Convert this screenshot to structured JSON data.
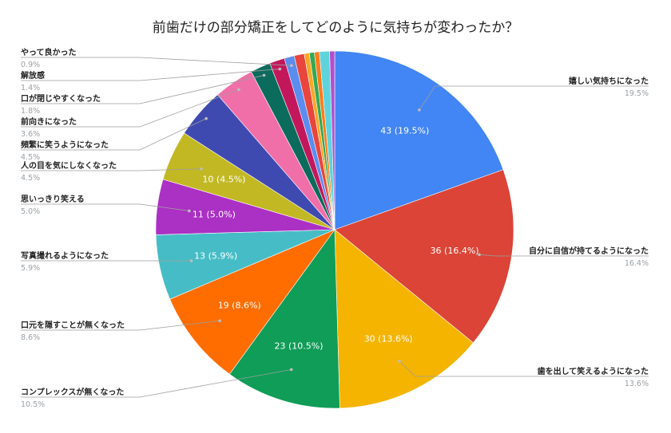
{
  "chart_data": {
    "type": "pie",
    "title": "前歯だけの部分矯正をしてどのように気持ちが変わったか？",
    "slices": [
      {
        "label": "嬉しい気持ちになった",
        "value": 43,
        "percent": "19.5%",
        "color": "#4285f4",
        "slice_label": "43 (19.5%)"
      },
      {
        "label": "自分に自信が持てるようになった",
        "value": 36,
        "percent": "16.4%",
        "color": "#db4437",
        "slice_label": "36 (16.4%)"
      },
      {
        "label": "歯を出して笑えるようになった",
        "value": 30,
        "percent": "13.6%",
        "color": "#f4b400",
        "slice_label": "30 (13.6%)"
      },
      {
        "label": "コンプレックスが無くなった",
        "value": 23,
        "percent": "10.5%",
        "color": "#0f9d58",
        "slice_label": "23 (10.5%)"
      },
      {
        "label": "口元を隠すことが無くなった",
        "value": 19,
        "percent": "8.6%",
        "color": "#ff6d01",
        "slice_label": "19 (8.6%)"
      },
      {
        "label": "写真撮れるようになった",
        "value": 13,
        "percent": "5.9%",
        "color": "#46bdc6",
        "slice_label": "13 (5.9%)"
      },
      {
        "label": "思いっきり笑える",
        "value": 11,
        "percent": "5.0%",
        "color": "#ab30c4",
        "slice_label": "11 (5.0%)"
      },
      {
        "label": "人の目を気にしなくなった",
        "value": 10,
        "percent": "4.5%",
        "color": "#c2b824",
        "slice_label": "10 (4.5%)"
      },
      {
        "label": "頻繁に笑うようになった",
        "value": 10,
        "percent": "4.5%",
        "color": "#3f4ab0",
        "slice_label": ""
      },
      {
        "label": "前向きになった",
        "value": 8,
        "percent": "3.6%",
        "color": "#f06fa8",
        "slice_label": ""
      },
      {
        "label": "口が閉じやすくなった",
        "value": 4,
        "percent": "1.8%",
        "color": "#0b6b5c",
        "slice_label": ""
      },
      {
        "label": "解放感",
        "value": 3,
        "percent": "1.4%",
        "color": "#c2185b",
        "slice_label": ""
      },
      {
        "label": "やって良かった",
        "value": 2,
        "percent": "0.9%",
        "color": "#5b8def",
        "slice_label": ""
      },
      {
        "label": "",
        "value": 2,
        "percent": "",
        "color": "#e8453c",
        "slice_label": ""
      },
      {
        "label": "",
        "value": 1,
        "percent": "",
        "color": "#f9a825",
        "slice_label": ""
      },
      {
        "label": "",
        "value": 1,
        "percent": "",
        "color": "#34a853",
        "slice_label": ""
      },
      {
        "label": "",
        "value": 1,
        "percent": "",
        "color": "#ff7b1a",
        "slice_label": ""
      },
      {
        "label": "",
        "value": 2,
        "percent": "",
        "color": "#5fd3dc",
        "slice_label": ""
      },
      {
        "label": "",
        "value": 1,
        "percent": "",
        "color": "#b24fcf",
        "slice_label": ""
      }
    ],
    "legend": "callouts"
  }
}
